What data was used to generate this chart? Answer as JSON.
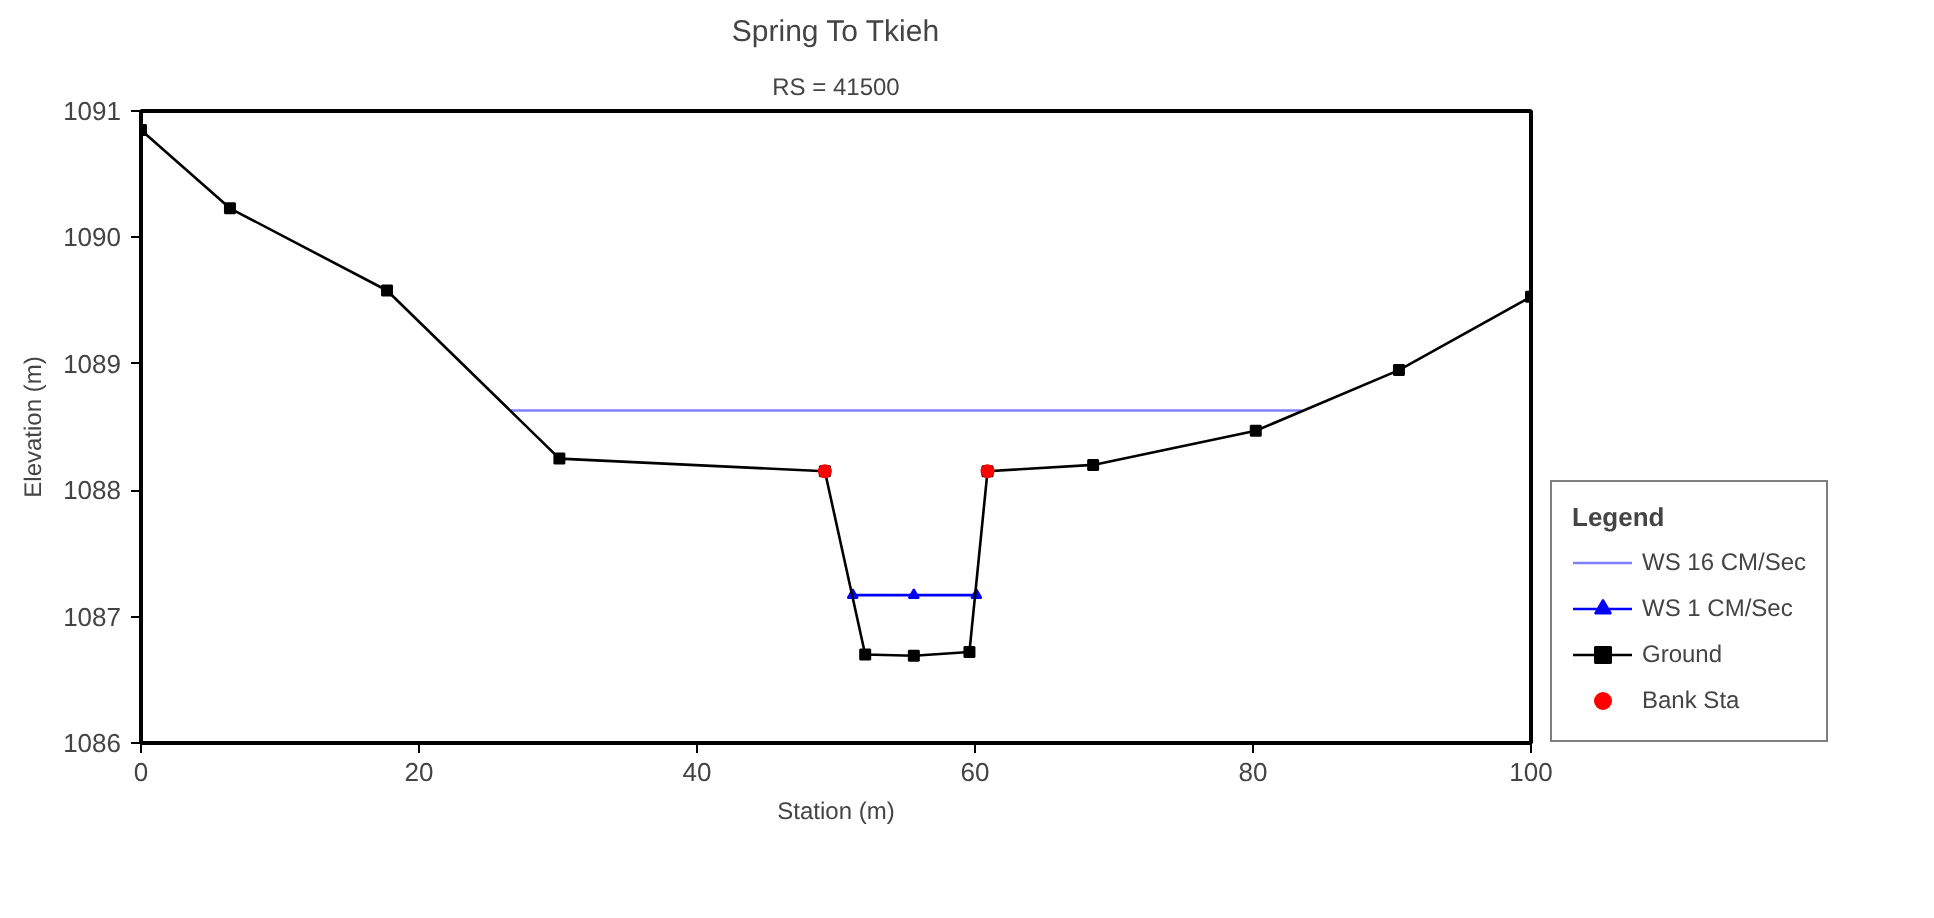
{
  "chart_data": {
    "type": "line",
    "title": "Spring To Tkieh",
    "subtitle": "RS = 41500",
    "xlabel": "Station (m)",
    "ylabel": "Elevation (m)",
    "legend_title": "Legend",
    "xlim": [
      0,
      100
    ],
    "ylim": [
      1086,
      1091
    ],
    "xticks": [
      0,
      20,
      40,
      60,
      80,
      100
    ],
    "yticks": [
      1086,
      1087,
      1088,
      1089,
      1090,
      1091
    ],
    "grid": false,
    "legend": "right",
    "series": [
      {
        "name": "WS 16 CM/Sec",
        "color": "#8080ff",
        "marker": "none",
        "x": [
          26.6,
          83.5
        ],
        "values": [
          1088.63,
          1088.63
        ]
      },
      {
        "name": "WS 1 CM/Sec",
        "color": "#0000ff",
        "marker": "triangle",
        "x": [
          51.2,
          55.6,
          60.1
        ],
        "values": [
          1087.17,
          1087.17,
          1087.17
        ]
      },
      {
        "name": "Ground",
        "color": "#000000",
        "marker": "square",
        "x": [
          0,
          6.4,
          17.7,
          30.1,
          49.2,
          52.1,
          55.6,
          59.6,
          60.9,
          68.5,
          80.2,
          90.5,
          100
        ],
        "values": [
          1090.85,
          1090.23,
          1089.58,
          1088.25,
          1088.15,
          1086.7,
          1086.69,
          1086.72,
          1088.15,
          1088.2,
          1088.47,
          1088.95,
          1089.53
        ]
      },
      {
        "name": "Bank Sta",
        "type": "scatter",
        "color": "#ff0000",
        "marker": "circle",
        "x": [
          49.2,
          60.9
        ],
        "values": [
          1088.15,
          1088.15
        ]
      }
    ]
  }
}
